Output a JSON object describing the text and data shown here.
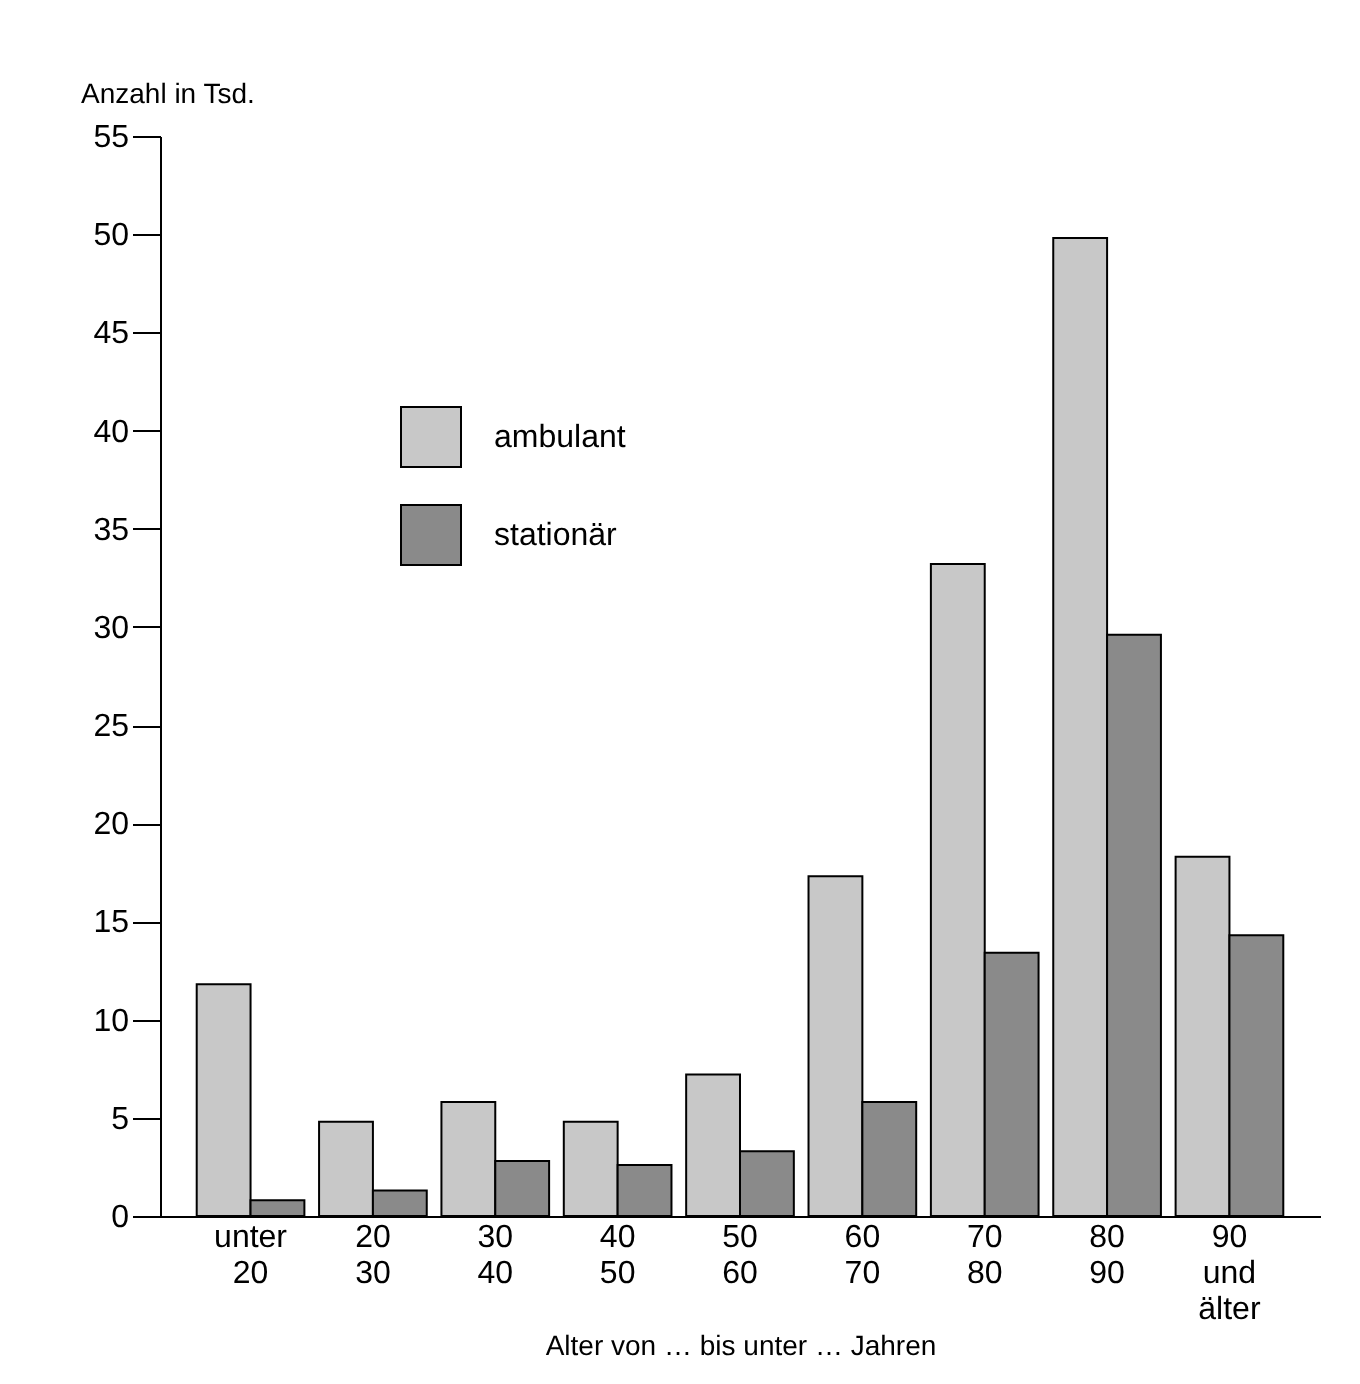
{
  "chart_data": {
    "type": "bar",
    "xlabel": "Alter von … bis unter … Jahren",
    "ylabel": "Anzahl in Tsd.",
    "categories": [
      "unter\n20",
      "20\n30",
      "30\n40",
      "40\n50",
      "50\n60",
      "60\n70",
      "70\n80",
      "80\n90",
      "90\nund\nälter"
    ],
    "series": [
      {
        "name": "ambulant",
        "color": "#c8c8c8",
        "values": [
          11.8,
          4.8,
          5.8,
          4.8,
          7.2,
          17.3,
          33.2,
          49.8,
          18.3
        ]
      },
      {
        "name": "stationär",
        "color": "#8a8a8a",
        "values": [
          0.8,
          1.3,
          2.8,
          2.6,
          3.3,
          5.8,
          13.4,
          29.6,
          14.3
        ]
      }
    ],
    "ylim": [
      0,
      55
    ],
    "yticks": [
      0,
      5,
      10,
      15,
      20,
      25,
      30,
      35,
      40,
      45,
      50,
      55
    ],
    "grid": false,
    "legend": "top left"
  }
}
